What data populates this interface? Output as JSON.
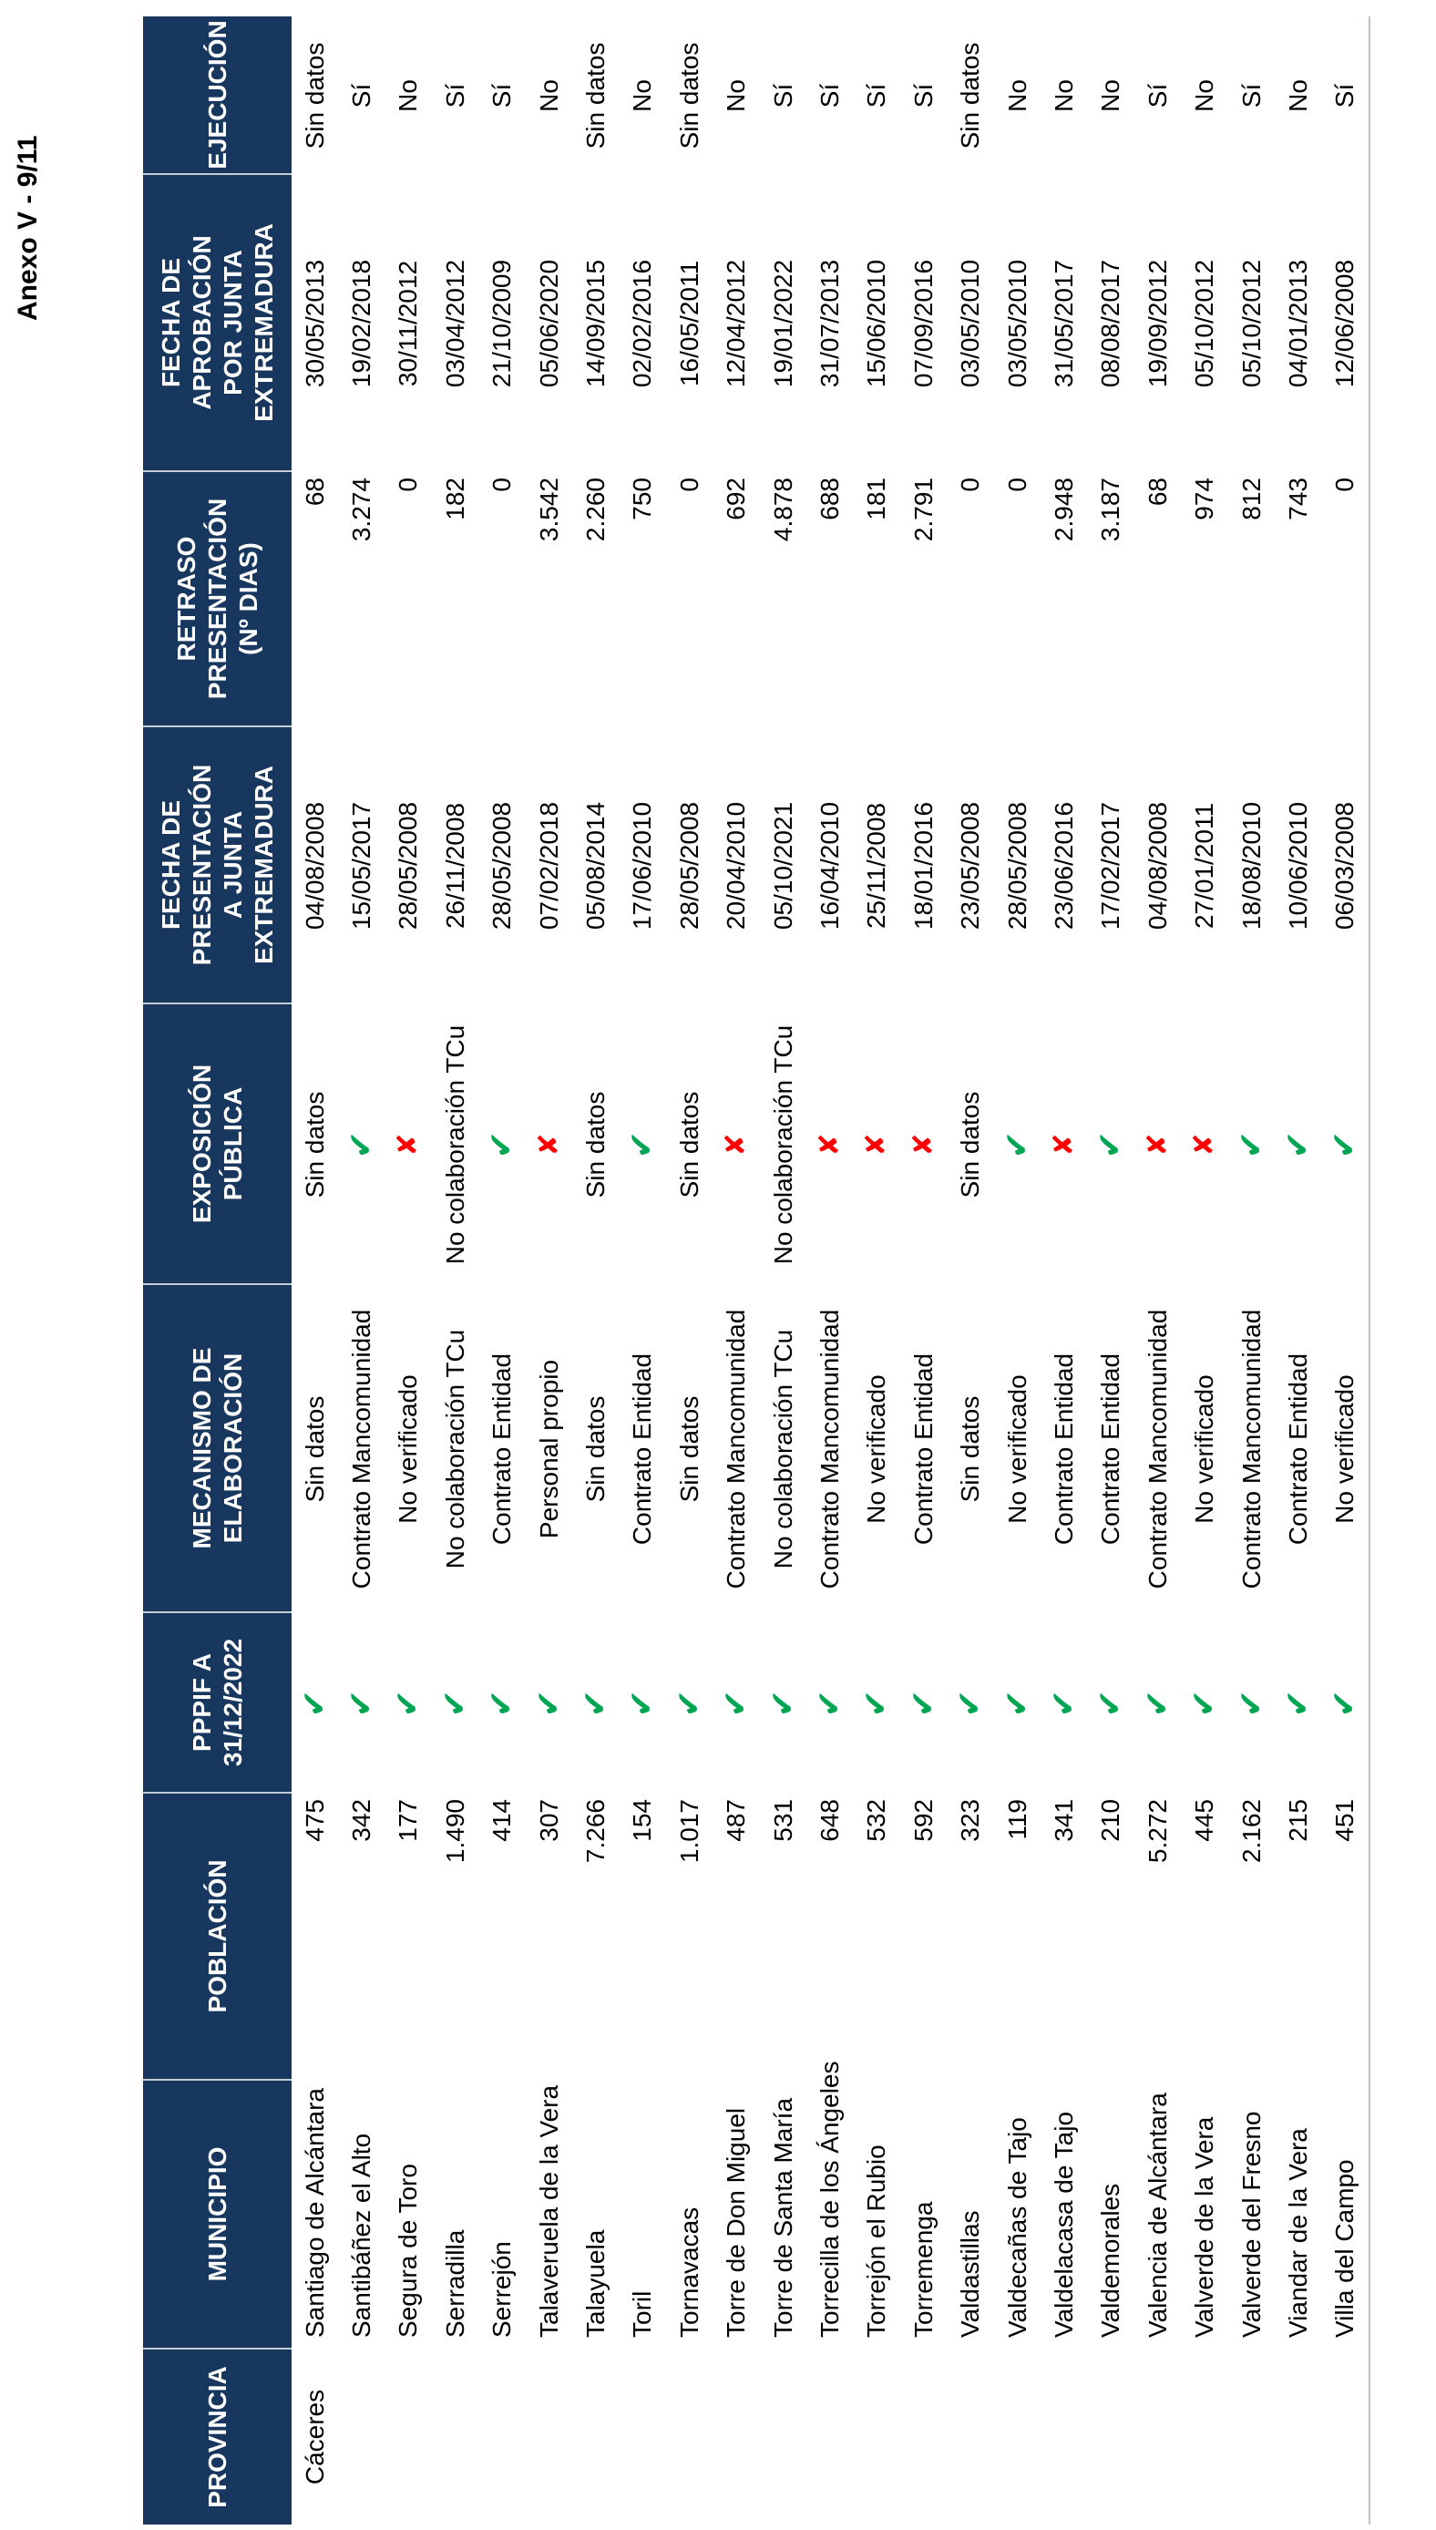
{
  "page": {
    "annex_label": "Anexo V - 9/11"
  },
  "colors": {
    "header_bg": "#17375E",
    "check_green": "#00A651",
    "cross_red": "#FE0000",
    "table_edge": "#BCC2C2"
  },
  "table": {
    "columns": [
      {
        "key": "provincia",
        "label": "PROVINCIA"
      },
      {
        "key": "municipio",
        "label": "MUNICIPIO"
      },
      {
        "key": "poblacion",
        "label": "POBLACIÓN"
      },
      {
        "key": "pppif",
        "label": "PPPIF A\n31/12/2022"
      },
      {
        "key": "mecanismo",
        "label": "MECANISMO DE\nELABORACIÓN"
      },
      {
        "key": "exposicion",
        "label": "EXPOSICIÓN\nPÚBLICA"
      },
      {
        "key": "fecha_presentacion",
        "label": "FECHA DE\nPRESENTACIÓN\nA JUNTA\nEXTREMADURA"
      },
      {
        "key": "retraso",
        "label": "RETRASO\nPRESENTACIÓN\n(Nº DIAS)"
      },
      {
        "key": "fecha_aprobacion",
        "label": "FECHA DE\nAPROBACIÓN\nPOR JUNTA\nEXTREMADURA"
      },
      {
        "key": "ejecucion",
        "label": "EJECUCIÓN"
      }
    ],
    "provincia": "Cáceres",
    "rows": [
      {
        "municipio": "Santiago de Alcántara",
        "poblacion": "475",
        "pppif": "CHECK",
        "mecanismo": "Sin datos",
        "exposicion": "Sin datos",
        "fecha_presentacion": "04/08/2008",
        "retraso": "68",
        "fecha_aprobacion": "30/05/2013",
        "ejecucion": "Sin datos"
      },
      {
        "municipio": "Santibáñez el Alto",
        "poblacion": "342",
        "pppif": "CHECK",
        "mecanismo": "Contrato Mancomunidad",
        "exposicion": "CHECK",
        "fecha_presentacion": "15/05/2017",
        "retraso": "3.274",
        "fecha_aprobacion": "19/02/2018",
        "ejecucion": "Sí"
      },
      {
        "municipio": "Segura de Toro",
        "poblacion": "177",
        "pppif": "CHECK",
        "mecanismo": "No verificado",
        "exposicion": "CROSS",
        "fecha_presentacion": "28/05/2008",
        "retraso": "0",
        "fecha_aprobacion": "30/11/2012",
        "ejecucion": "No"
      },
      {
        "municipio": "Serradilla",
        "poblacion": "1.490",
        "pppif": "CHECK",
        "mecanismo": "No colaboración TCu",
        "exposicion": "No colaboración TCu",
        "fecha_presentacion": "26/11/2008",
        "retraso": "182",
        "fecha_aprobacion": "03/04/2012",
        "ejecucion": "Sí"
      },
      {
        "municipio": "Serrejón",
        "poblacion": "414",
        "pppif": "CHECK",
        "mecanismo": "Contrato Entidad",
        "exposicion": "CHECK",
        "fecha_presentacion": "28/05/2008",
        "retraso": "0",
        "fecha_aprobacion": "21/10/2009",
        "ejecucion": "Sí"
      },
      {
        "municipio": "Talaveruela de la Vera",
        "poblacion": "307",
        "pppif": "CHECK",
        "mecanismo": "Personal propio",
        "exposicion": "CROSS",
        "fecha_presentacion": "07/02/2018",
        "retraso": "3.542",
        "fecha_aprobacion": "05/06/2020",
        "ejecucion": "No"
      },
      {
        "municipio": "Talayuela",
        "poblacion": "7.266",
        "pppif": "CHECK",
        "mecanismo": "Sin datos",
        "exposicion": "Sin datos",
        "fecha_presentacion": "05/08/2014",
        "retraso": "2.260",
        "fecha_aprobacion": "14/09/2015",
        "ejecucion": "Sin datos"
      },
      {
        "municipio": "Toril",
        "poblacion": "154",
        "pppif": "CHECK",
        "mecanismo": "Contrato Entidad",
        "exposicion": "CHECK",
        "fecha_presentacion": "17/06/2010",
        "retraso": "750",
        "fecha_aprobacion": "02/02/2016",
        "ejecucion": "No"
      },
      {
        "municipio": "Tornavacas",
        "poblacion": "1.017",
        "pppif": "CHECK",
        "mecanismo": "Sin datos",
        "exposicion": "Sin datos",
        "fecha_presentacion": "28/05/2008",
        "retraso": "0",
        "fecha_aprobacion": "16/05/2011",
        "ejecucion": "Sin datos"
      },
      {
        "municipio": "Torre de Don Miguel",
        "poblacion": "487",
        "pppif": "CHECK",
        "mecanismo": "Contrato Mancomunidad",
        "exposicion": "CROSS",
        "fecha_presentacion": "20/04/2010",
        "retraso": "692",
        "fecha_aprobacion": "12/04/2012",
        "ejecucion": "No"
      },
      {
        "municipio": "Torre de Santa María",
        "poblacion": "531",
        "pppif": "CHECK",
        "mecanismo": "No colaboración TCu",
        "exposicion": "No colaboración TCu",
        "fecha_presentacion": "05/10/2021",
        "retraso": "4.878",
        "fecha_aprobacion": "19/01/2022",
        "ejecucion": "Sí"
      },
      {
        "municipio": "Torrecilla de los Ángeles",
        "poblacion": "648",
        "pppif": "CHECK",
        "mecanismo": "Contrato Mancomunidad",
        "exposicion": "CROSS",
        "fecha_presentacion": "16/04/2010",
        "retraso": "688",
        "fecha_aprobacion": "31/07/2013",
        "ejecucion": "Sí"
      },
      {
        "municipio": "Torrejón el Rubio",
        "poblacion": "532",
        "pppif": "CHECK",
        "mecanismo": "No verificado",
        "exposicion": "CROSS",
        "fecha_presentacion": "25/11/2008",
        "retraso": "181",
        "fecha_aprobacion": "15/06/2010",
        "ejecucion": "Sí"
      },
      {
        "municipio": "Torremenga",
        "poblacion": "592",
        "pppif": "CHECK",
        "mecanismo": "Contrato Entidad",
        "exposicion": "CROSS",
        "fecha_presentacion": "18/01/2016",
        "retraso": "2.791",
        "fecha_aprobacion": "07/09/2016",
        "ejecucion": "Sí"
      },
      {
        "municipio": "Valdastillas",
        "poblacion": "323",
        "pppif": "CHECK",
        "mecanismo": "Sin datos",
        "exposicion": "Sin datos",
        "fecha_presentacion": "23/05/2008",
        "retraso": "0",
        "fecha_aprobacion": "03/05/2010",
        "ejecucion": "Sin datos"
      },
      {
        "municipio": "Valdecañas de Tajo",
        "poblacion": "119",
        "pppif": "CHECK",
        "mecanismo": "No verificado",
        "exposicion": "CHECK",
        "fecha_presentacion": "28/05/2008",
        "retraso": "0",
        "fecha_aprobacion": "03/05/2010",
        "ejecucion": "No"
      },
      {
        "municipio": "Valdelacasa de Tajo",
        "poblacion": "341",
        "pppif": "CHECK",
        "mecanismo": "Contrato Entidad",
        "exposicion": "CROSS",
        "fecha_presentacion": "23/06/2016",
        "retraso": "2.948",
        "fecha_aprobacion": "31/05/2017",
        "ejecucion": "No"
      },
      {
        "municipio": "Valdemorales",
        "poblacion": "210",
        "pppif": "CHECK",
        "mecanismo": "Contrato Entidad",
        "exposicion": "CHECK",
        "fecha_presentacion": "17/02/2017",
        "retraso": "3.187",
        "fecha_aprobacion": "08/08/2017",
        "ejecucion": "No"
      },
      {
        "municipio": "Valencia de Alcántara",
        "poblacion": "5.272",
        "pppif": "CHECK",
        "mecanismo": "Contrato Mancomunidad",
        "exposicion": "CROSS",
        "fecha_presentacion": "04/08/2008",
        "retraso": "68",
        "fecha_aprobacion": "19/09/2012",
        "ejecucion": "Sí"
      },
      {
        "municipio": "Valverde de la Vera",
        "poblacion": "445",
        "pppif": "CHECK",
        "mecanismo": "No verificado",
        "exposicion": "CROSS",
        "fecha_presentacion": "27/01/2011",
        "retraso": "974",
        "fecha_aprobacion": "05/10/2012",
        "ejecucion": "No"
      },
      {
        "municipio": "Valverde del Fresno",
        "poblacion": "2.162",
        "pppif": "CHECK",
        "mecanismo": "Contrato Mancomunidad",
        "exposicion": "CHECK",
        "fecha_presentacion": "18/08/2010",
        "retraso": "812",
        "fecha_aprobacion": "05/10/2012",
        "ejecucion": "Sí"
      },
      {
        "municipio": "Viandar de la Vera",
        "poblacion": "215",
        "pppif": "CHECK",
        "mecanismo": "Contrato Entidad",
        "exposicion": "CHECK",
        "fecha_presentacion": "10/06/2010",
        "retraso": "743",
        "fecha_aprobacion": "04/01/2013",
        "ejecucion": "No"
      },
      {
        "municipio": "Villa del Campo",
        "poblacion": "451",
        "pppif": "CHECK",
        "mecanismo": "No verificado",
        "exposicion": "CHECK",
        "fecha_presentacion": "06/03/2008",
        "retraso": "0",
        "fecha_aprobacion": "12/06/2008",
        "ejecucion": "Sí"
      }
    ]
  }
}
